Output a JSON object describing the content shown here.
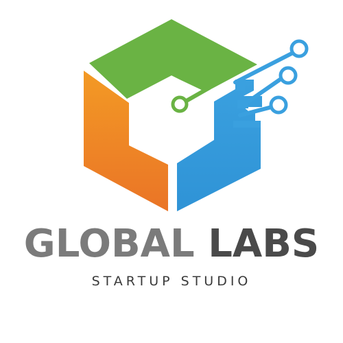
{
  "brand": {
    "name_part_1": "GLOBAL",
    "name_part_2": "LABS",
    "tagline": "STARTUP STUDIO"
  },
  "logo": {
    "icon": "cube-circuit-icon",
    "colors": {
      "top_face": "#6ab344",
      "left_face": "#f39a25",
      "left_face_dark": "#ea7426",
      "right_face": "#3aa0df",
      "circuit_green": "#6ab344",
      "circuit_blue": "#3aa0df"
    }
  },
  "text_colors": {
    "name_part_1": "#7b7b7b",
    "name_part_2": "#4a4a4a",
    "tagline": "#3a3a3a"
  }
}
